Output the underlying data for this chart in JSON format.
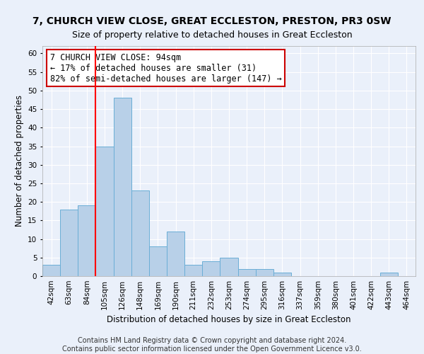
{
  "title1": "7, CHURCH VIEW CLOSE, GREAT ECCLESTON, PRESTON, PR3 0SW",
  "title2": "Size of property relative to detached houses in Great Eccleston",
  "xlabel": "Distribution of detached houses by size in Great Eccleston",
  "ylabel": "Number of detached properties",
  "categories": [
    "42sqm",
    "63sqm",
    "84sqm",
    "105sqm",
    "126sqm",
    "148sqm",
    "169sqm",
    "190sqm",
    "211sqm",
    "232sqm",
    "253sqm",
    "274sqm",
    "295sqm",
    "316sqm",
    "337sqm",
    "359sqm",
    "380sqm",
    "401sqm",
    "422sqm",
    "443sqm",
    "464sqm"
  ],
  "values": [
    3,
    18,
    19,
    35,
    48,
    23,
    8,
    12,
    3,
    4,
    5,
    2,
    2,
    1,
    0,
    0,
    0,
    0,
    0,
    1,
    0
  ],
  "bar_color": "#b8d0e8",
  "bar_edge_color": "#6aaed6",
  "red_line_x": 2.5,
  "annotation_text": "7 CHURCH VIEW CLOSE: 94sqm\n← 17% of detached houses are smaller (31)\n82% of semi-detached houses are larger (147) →",
  "annotation_box_color": "#ffffff",
  "annotation_box_edge": "#cc0000",
  "ylim": [
    0,
    62
  ],
  "yticks": [
    0,
    5,
    10,
    15,
    20,
    25,
    30,
    35,
    40,
    45,
    50,
    55,
    60
  ],
  "footer1": "Contains HM Land Registry data © Crown copyright and database right 2024.",
  "footer2": "Contains public sector information licensed under the Open Government Licence v3.0.",
  "background_color": "#eaf0fa",
  "grid_color": "#ffffff",
  "title1_fontsize": 10,
  "title2_fontsize": 9,
  "xlabel_fontsize": 8.5,
  "ylabel_fontsize": 8.5,
  "tick_fontsize": 7.5,
  "footer_fontsize": 7,
  "annotation_fontsize": 8.5
}
